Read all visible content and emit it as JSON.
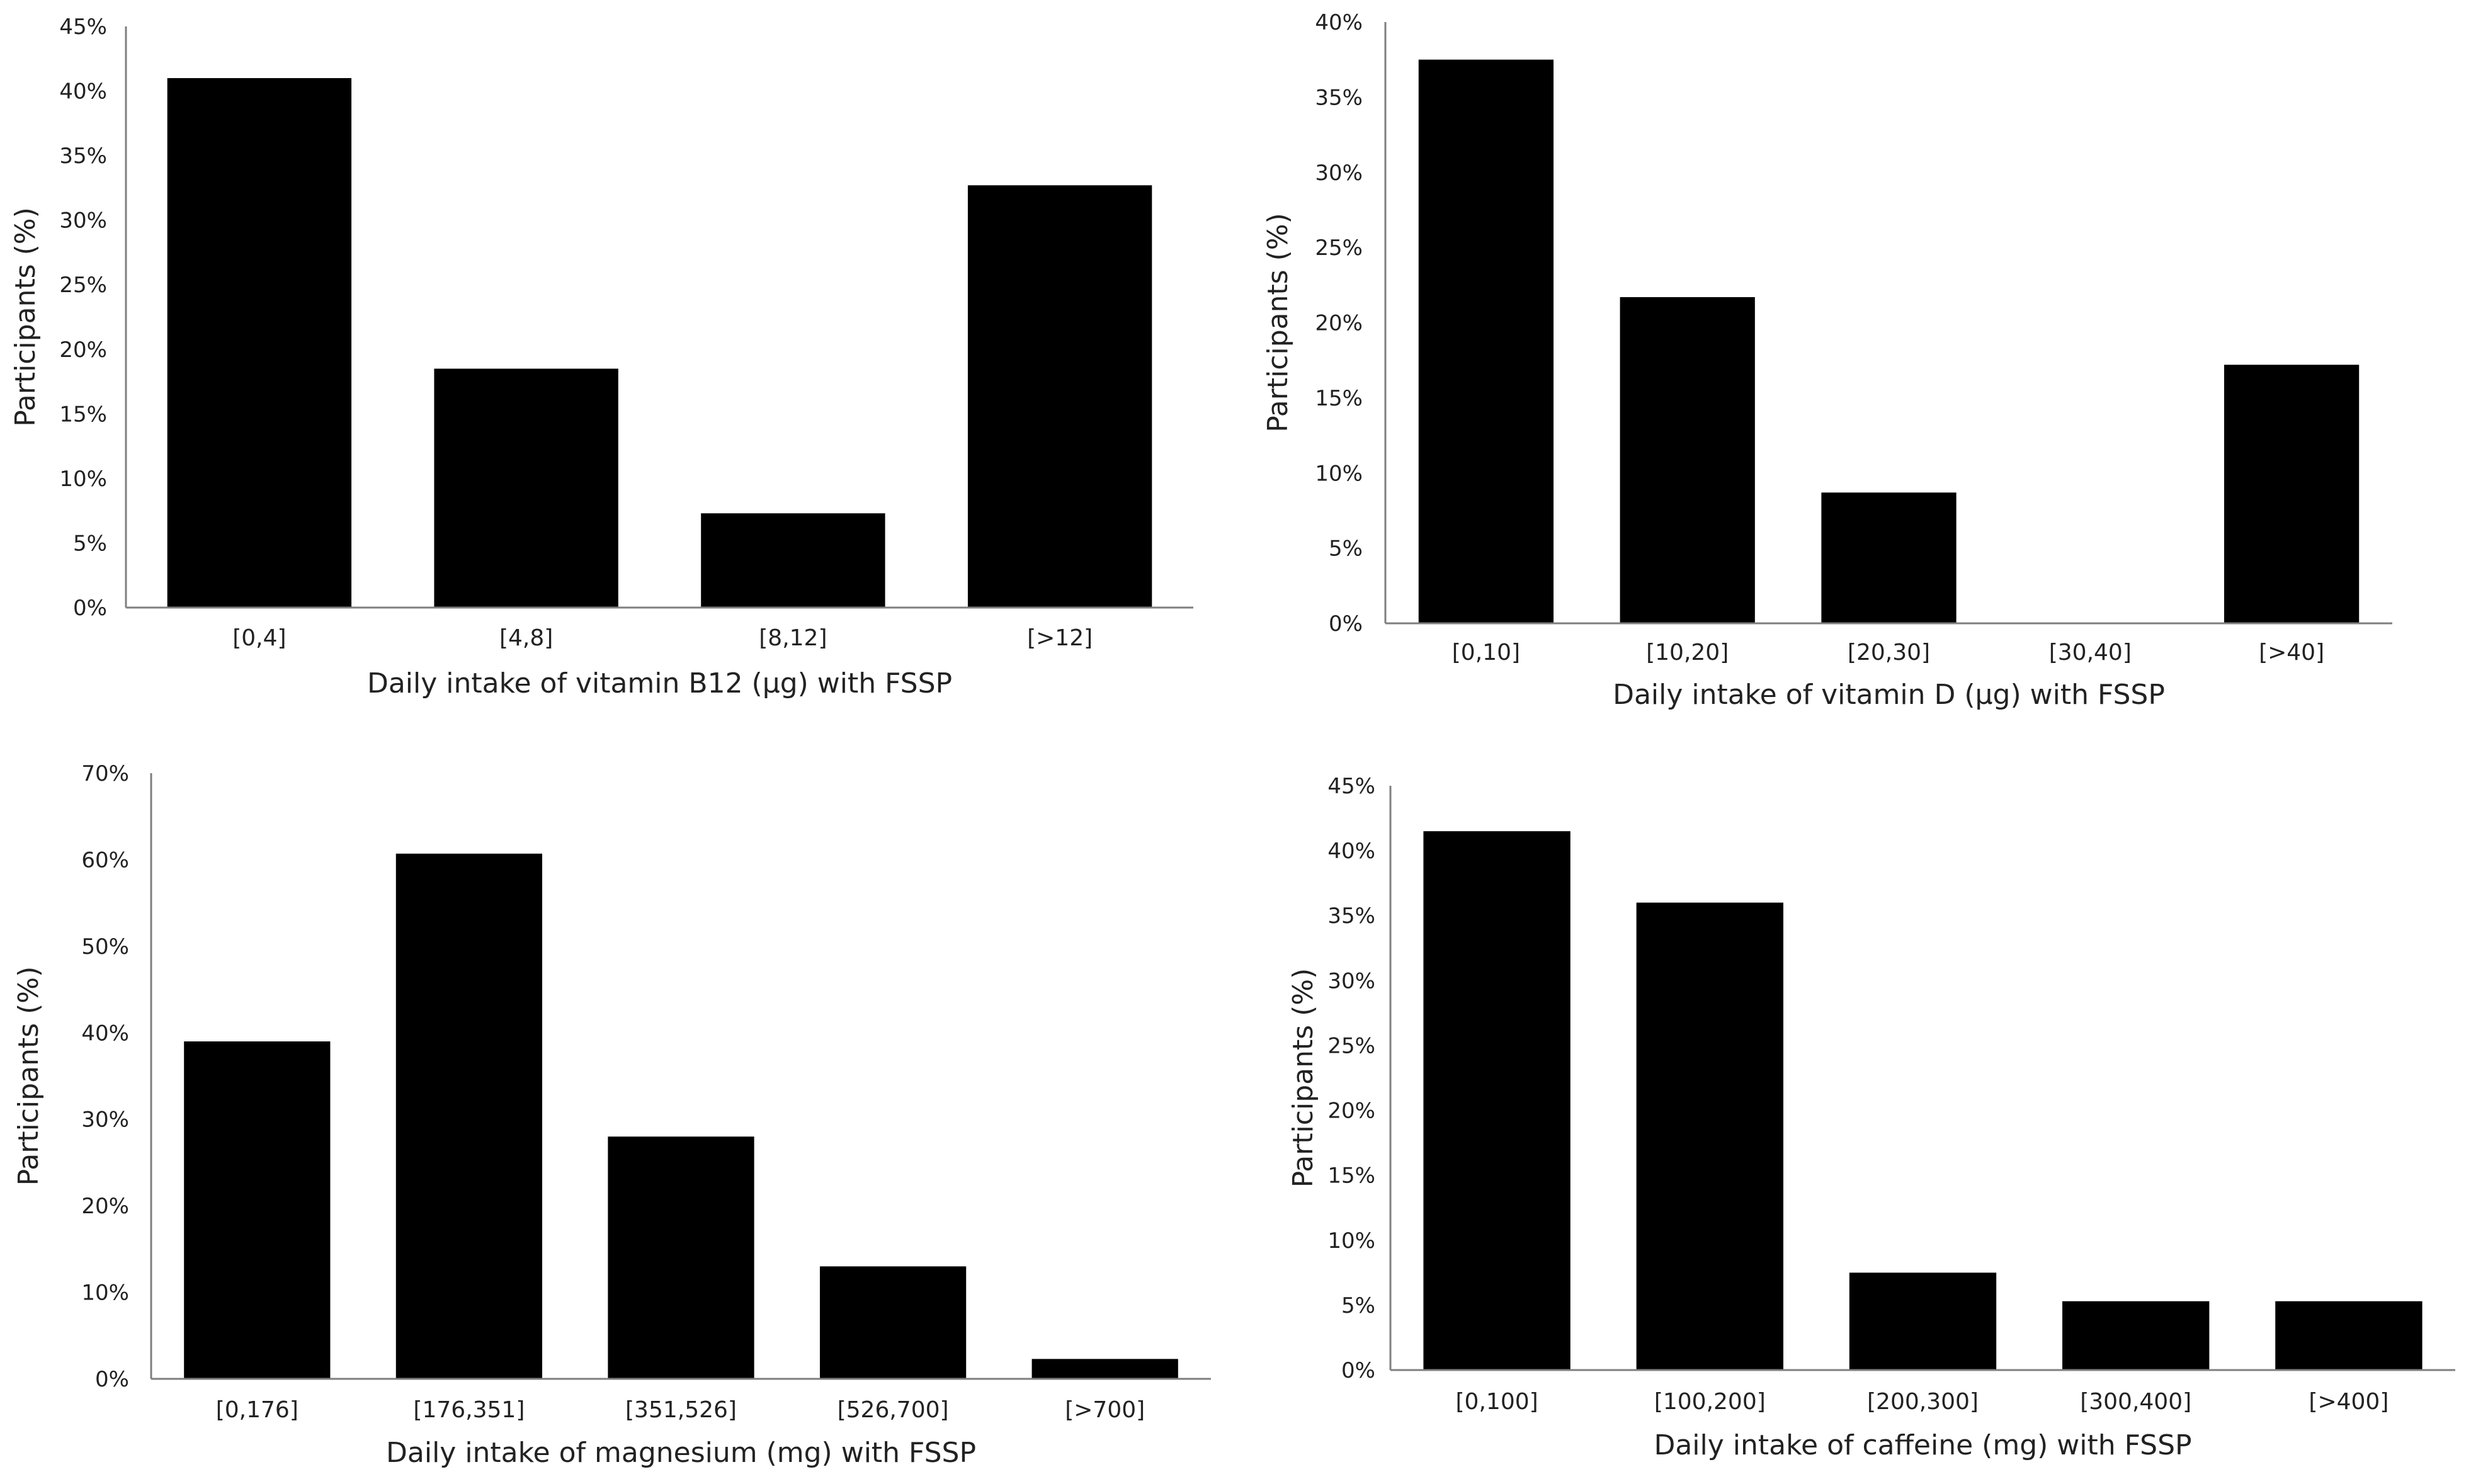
{
  "chart_data": [
    {
      "type": "bar",
      "categories": [
        "[0,4]",
        "[4,8]",
        "[8,12]",
        "[>12]"
      ],
      "values": [
        41,
        18.5,
        7.3,
        32.7
      ],
      "xlabel": "Daily intake of vitamin B12 (µg) with FSSP",
      "ylabel": "Participants (%)",
      "ylim": [
        0,
        45
      ],
      "yticks": [
        "0%",
        "5%",
        "10%",
        "15%",
        "20%",
        "25%",
        "30%",
        "35%",
        "40%",
        "45%"
      ],
      "bar_color": "#000000"
    },
    {
      "type": "bar",
      "categories": [
        "[0,10]",
        "[10,20]",
        "[20,30]",
        "[30,40]",
        "[>40]"
      ],
      "values": [
        37.5,
        21.7,
        8.7,
        0,
        17.2
      ],
      "xlabel": "Daily intake of vitamin D (µg) with FSSP",
      "ylabel": "Participants (%)",
      "ylim": [
        0,
        40
      ],
      "yticks": [
        "0%",
        "5%",
        "10%",
        "15%",
        "20%",
        "25%",
        "30%",
        "35%",
        "40%"
      ],
      "bar_color": "#000000"
    },
    {
      "type": "bar",
      "categories": [
        "[0,176]",
        "[176,351]",
        "[351,526]",
        "[526,700]",
        "[>700]"
      ],
      "values": [
        39,
        60.7,
        28,
        13,
        2.3
      ],
      "xlabel": "Daily intake of magnesium (mg) with FSSP",
      "ylabel": "Participants (%)",
      "ylim": [
        0,
        70
      ],
      "yticks": [
        "0%",
        "10%",
        "20%",
        "30%",
        "40%",
        "50%",
        "60%",
        "70%"
      ],
      "bar_color": "#000000"
    },
    {
      "type": "bar",
      "categories": [
        "[0,100]",
        "[100,200]",
        "[200,300]",
        "[300,400]",
        "[>400]"
      ],
      "values": [
        41.5,
        36,
        7.5,
        5.3,
        5.3
      ],
      "xlabel": "Daily intake of caffeine (mg) with FSSP",
      "ylabel": "Participants (%)",
      "ylim": [
        0,
        45
      ],
      "yticks": [
        "0%",
        "5%",
        "10%",
        "15%",
        "20%",
        "25%",
        "30%",
        "35%",
        "40%",
        "45%"
      ],
      "bar_color": "#000000"
    }
  ]
}
